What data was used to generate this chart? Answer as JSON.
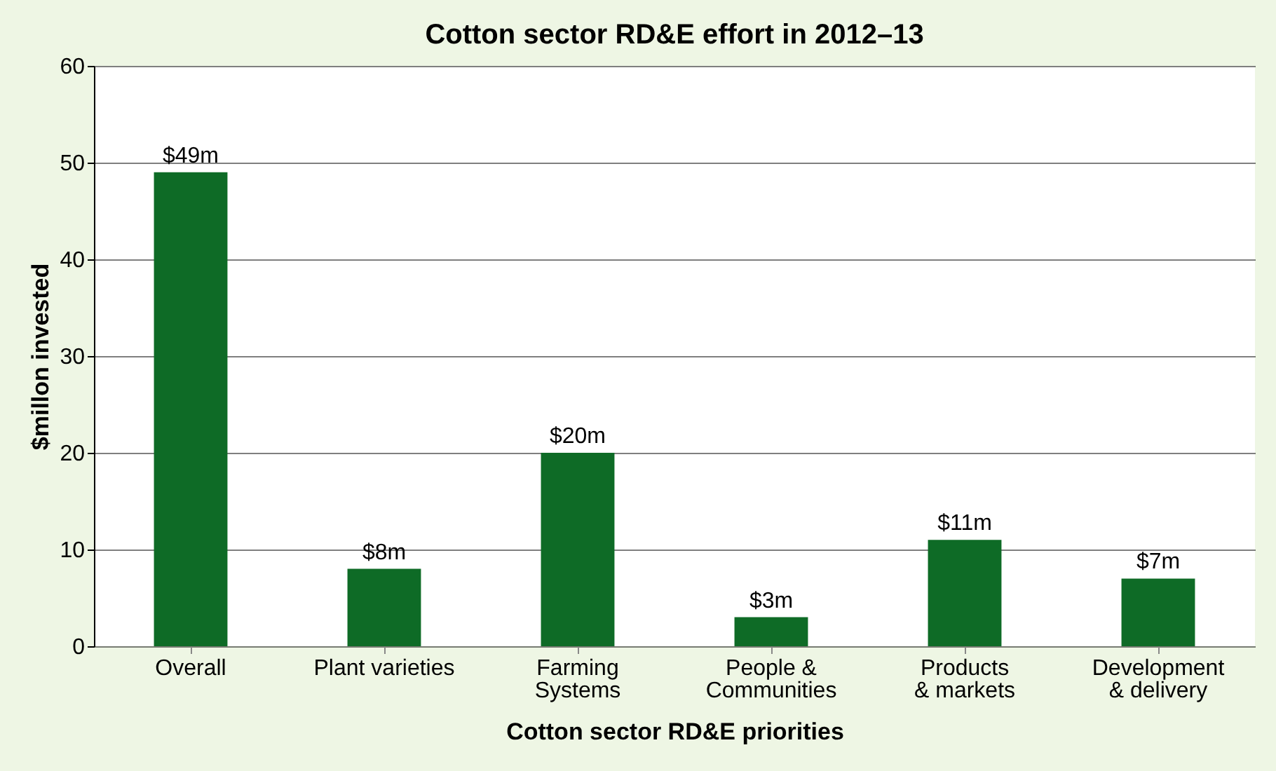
{
  "chart_data": {
    "type": "bar",
    "title": "Cotton sector RD&E effort in 2012–13",
    "xlabel": "Cotton sector RD&E priorities",
    "ylabel": "$millon invested",
    "categories": [
      "Overall",
      "Plant varieties",
      "Farming\nSystems",
      "People &\nCommunities",
      "Products\n& markets",
      "Development\n& delivery"
    ],
    "values": [
      49,
      8,
      20,
      3,
      11,
      7
    ],
    "value_labels": [
      "$49m",
      "$8m",
      "$20m",
      "$3m",
      "$11m",
      "$7m"
    ],
    "color": "#0e6b26",
    "ylim": [
      0,
      60
    ],
    "yticks": [
      0,
      10,
      20,
      30,
      40,
      50,
      60
    ],
    "grid": "y"
  }
}
